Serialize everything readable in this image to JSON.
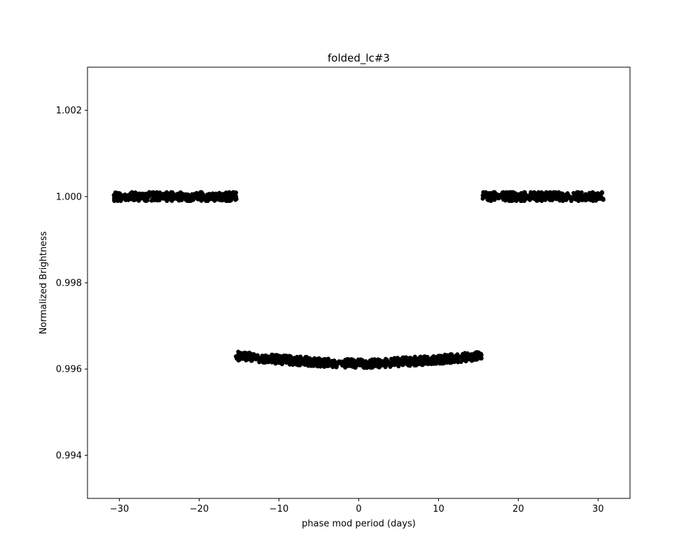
{
  "chart_data": {
    "type": "scatter",
    "title": "folded_lc#3",
    "xlabel": "phase mod period (days)",
    "ylabel": "Normalized Brightness",
    "xlim": [
      -34,
      34
    ],
    "ylim": [
      0.993,
      1.003
    ],
    "x_ticks": [
      -30,
      -20,
      -10,
      0,
      10,
      20,
      30
    ],
    "x_tick_labels": [
      "−30",
      "−20",
      "−10",
      "0",
      "10",
      "20",
      "30"
    ],
    "y_ticks": [
      0.994,
      0.996,
      0.998,
      1.0,
      1.002
    ],
    "y_tick_labels": [
      "0.994",
      "0.996",
      "0.998",
      "1.000",
      "1.002"
    ],
    "grid": false,
    "marker_color": "#000000",
    "series": [
      {
        "segments": [
          {
            "x_range": [
              -30.7,
              -15.3
            ],
            "y_level": 1.0,
            "y_scatter": 0.0001
          },
          {
            "x_range": [
              15.5,
              30.7
            ],
            "y_level": 1.0,
            "y_scatter": 0.0001
          },
          {
            "x_range": [
              -15.4,
              15.4
            ],
            "y_curve": {
              "x": [
                -15,
                -10,
                -5,
                0,
                5,
                10,
                15
              ],
              "y": [
                0.9963,
                0.99622,
                0.99616,
                0.99612,
                0.99616,
                0.99622,
                0.9963
              ]
            },
            "y_scatter": 0.0001
          }
        ]
      }
    ]
  }
}
